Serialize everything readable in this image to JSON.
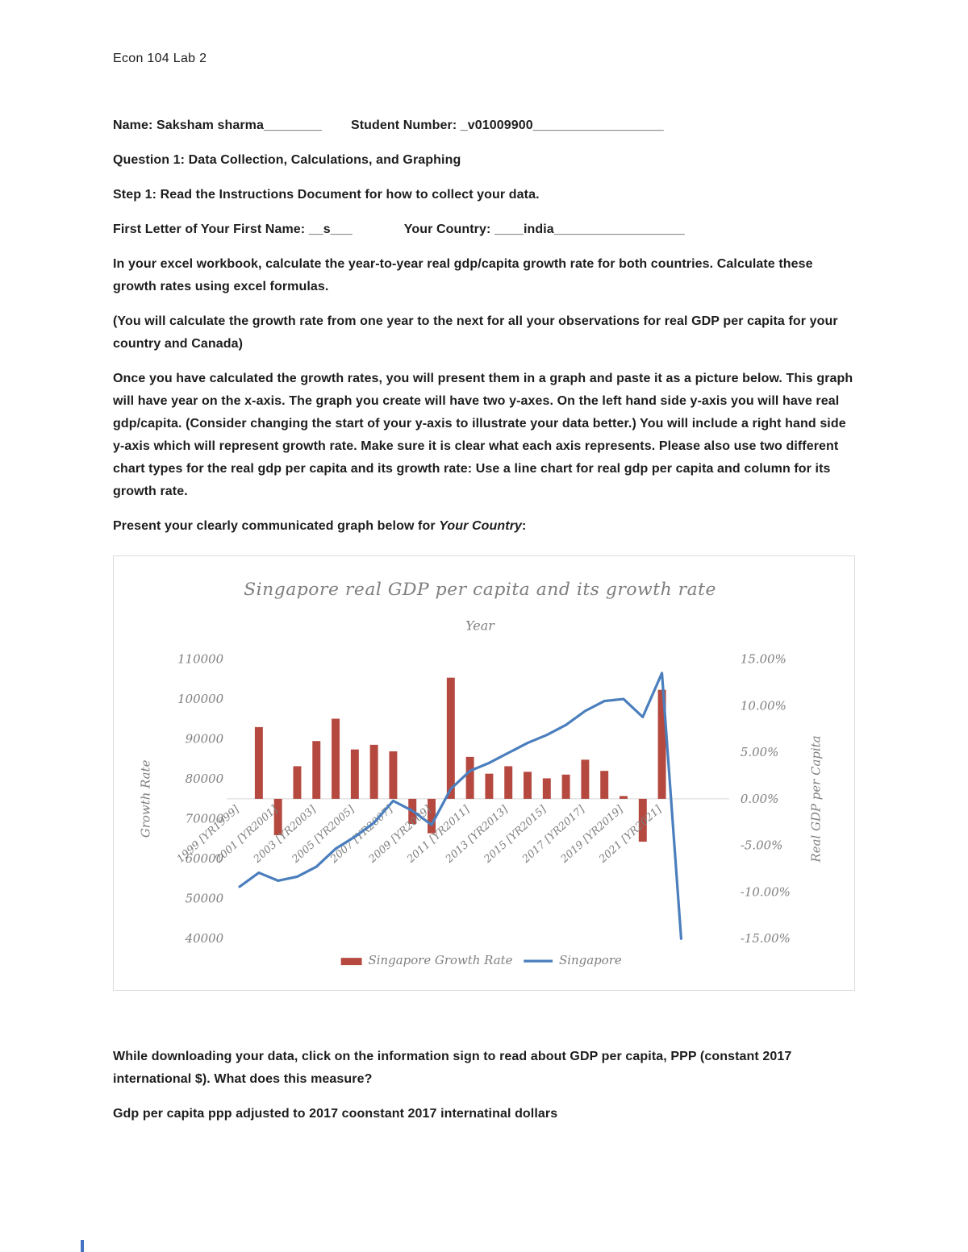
{
  "doc": {
    "header": "Econ 104 Lab 2",
    "name_line": {
      "name": "Name: Saksham sharma________",
      "student_number": "Student Number: _v01009900__________________"
    },
    "question1": "Question 1: Data Collection, Calculations, and Graphing",
    "step1": "Step 1: Read the Instructions Document for how to collect your data.",
    "letter_line": {
      "first_letter": "First Letter of Your First Name: __s___",
      "country": "Your Country: ____india__________________"
    },
    "para_calculate": "In your excel workbook, calculate the year-to-year real gdp/capita growth rate for both countries. Calculate these growth rates using excel formulas.",
    "para_note": "(You will calculate the growth rate from one year to the next for all your observations for real GDP per capita for your country and Canada)",
    "para_graph_instructions": "Once you have calculated the growth rates, you will present them in a graph and paste it as a picture below. This graph will have year on the x-axis. The graph you create will have two y-axes. On the left hand side y-axis you will have real gdp/capita. (Consider changing the start of your y-axis to illustrate your data better.) You will include a right hand side y-axis which will represent growth rate. Make sure it is clear what each axis represents. Please also use two different chart types for the real gdp per capita and its growth rate: Use a line chart for real gdp per capita and column for its growth rate.",
    "present_line": {
      "prefix": "Present your clearly communicated graph below for ",
      "emphasis": "Your Country",
      "suffix": ":"
    },
    "para_ppp_question": "While downloading your data, click on the information sign to read about GDP per capita, PPP (constant 2017 international $). What does this measure?",
    "answer_ppp": "Gdp per capita ppp adjusted to 2017 coonstant 2017 internatinal dollars"
  },
  "chart_data": {
    "type": "combo",
    "title": "Singapore real GDP per capita and its growth rate",
    "x_axis_label": "Year",
    "categories": [
      "1999",
      "2000",
      "2001",
      "2002",
      "2003",
      "2004",
      "2005",
      "2006",
      "2007",
      "2008",
      "2009",
      "2010",
      "2011",
      "2012",
      "2013",
      "2014",
      "2015",
      "2016",
      "2017",
      "2018",
      "2019",
      "2020",
      "2021",
      "2022",
      "2023",
      "2024"
    ],
    "x_tick_labels": [
      {
        "index": 0,
        "label": "1999 [YR1999]"
      },
      {
        "index": 2,
        "label": "2001 [YR2001]"
      },
      {
        "index": 4,
        "label": "2003 [YR2003]"
      },
      {
        "index": 6,
        "label": "2005 [YR2005]"
      },
      {
        "index": 8,
        "label": "2007 [YR2007]"
      },
      {
        "index": 10,
        "label": "2009 [YR2009]"
      },
      {
        "index": 12,
        "label": "2011 [YR2011]"
      },
      {
        "index": 14,
        "label": "2013 [YR2013]"
      },
      {
        "index": 16,
        "label": "2015 [YR2015]"
      },
      {
        "index": 18,
        "label": "2017 [YR2017]"
      },
      {
        "index": 20,
        "label": "2019 [YR2019]"
      },
      {
        "index": 22,
        "label": "2021 [YR2021]"
      }
    ],
    "series": [
      {
        "name": "Singapore Growth Rate",
        "chart_type": "column",
        "axis": "right",
        "color": "#b5493f",
        "values": [
          null,
          7.7,
          -3.9,
          3.5,
          6.2,
          8.6,
          5.3,
          5.8,
          5.1,
          -2.7,
          -3.7,
          13.0,
          4.5,
          2.7,
          3.5,
          2.9,
          2.2,
          2.6,
          4.2,
          3.0,
          0.3,
          -4.6,
          11.7,
          null,
          null,
          null
        ]
      },
      {
        "name": "Singapore",
        "chart_type": "line",
        "axis": "left",
        "color": "#4a7ebd",
        "values": [
          53000,
          56500,
          54500,
          55500,
          58000,
          62500,
          65500,
          69000,
          74500,
          72000,
          68500,
          77500,
          82000,
          84000,
          86500,
          89000,
          91000,
          93500,
          97000,
          99500,
          100000,
          95500,
          106500,
          40000,
          null,
          null
        ]
      }
    ],
    "left_axis": {
      "title": "Growth Rate",
      "min": 40000,
      "max": 110000,
      "tick_step": 10000,
      "tick_labels": [
        "110000",
        "100000",
        "90000",
        "80000",
        "70000",
        "60000",
        "50000",
        "40000"
      ]
    },
    "right_axis": {
      "title": "Real GDP per Capita",
      "min": -15,
      "max": 15,
      "tick_step": 5,
      "tick_labels": [
        "15.00%",
        "10.00%",
        "5.00%",
        "0.00%",
        "-5.00%",
        "-10.00%",
        "-15.00%"
      ]
    },
    "legend": [
      {
        "label": "Singapore Growth Rate",
        "type": "column"
      },
      {
        "label": "Singapore",
        "type": "line"
      }
    ],
    "text_color": "#7f7f7f",
    "axis_line_color": "#d6d6d6",
    "grid": "off",
    "legend_position": "bottom"
  }
}
